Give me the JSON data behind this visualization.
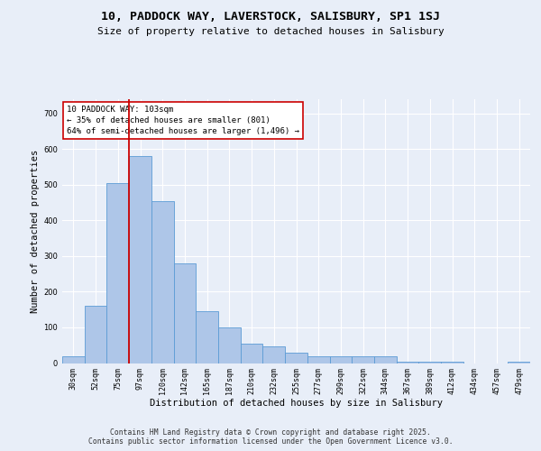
{
  "title_line1": "10, PADDOCK WAY, LAVERSTOCK, SALISBURY, SP1 1SJ",
  "title_line2": "Size of property relative to detached houses in Salisbury",
  "xlabel": "Distribution of detached houses by size in Salisbury",
  "ylabel": "Number of detached properties",
  "categories": [
    "30sqm",
    "52sqm",
    "75sqm",
    "97sqm",
    "120sqm",
    "142sqm",
    "165sqm",
    "187sqm",
    "210sqm",
    "232sqm",
    "255sqm",
    "277sqm",
    "299sqm",
    "322sqm",
    "344sqm",
    "367sqm",
    "389sqm",
    "412sqm",
    "434sqm",
    "457sqm",
    "479sqm"
  ],
  "values": [
    20,
    160,
    505,
    580,
    455,
    280,
    145,
    100,
    55,
    48,
    30,
    18,
    18,
    18,
    18,
    5,
    5,
    5,
    0,
    0,
    5
  ],
  "bar_color": "#aec6e8",
  "bar_edge_color": "#5b9bd5",
  "background_color": "#e8eef8",
  "grid_color": "#ffffff",
  "vline_color": "#cc0000",
  "vline_index": 3,
  "annotation_text": "10 PADDOCK WAY: 103sqm\n← 35% of detached houses are smaller (801)\n64% of semi-detached houses are larger (1,496) →",
  "annotation_box_facecolor": "white",
  "annotation_box_edgecolor": "#cc0000",
  "footer_text": "Contains HM Land Registry data © Crown copyright and database right 2025.\nContains public sector information licensed under the Open Government Licence v3.0.",
  "ylim": [
    0,
    740
  ],
  "yticks": [
    0,
    100,
    200,
    300,
    400,
    500,
    600,
    700
  ],
  "title_fontsize": 9.5,
  "subtitle_fontsize": 8,
  "tick_fontsize": 6,
  "label_fontsize": 7.5,
  "annotation_fontsize": 6.5,
  "footer_fontsize": 5.8
}
